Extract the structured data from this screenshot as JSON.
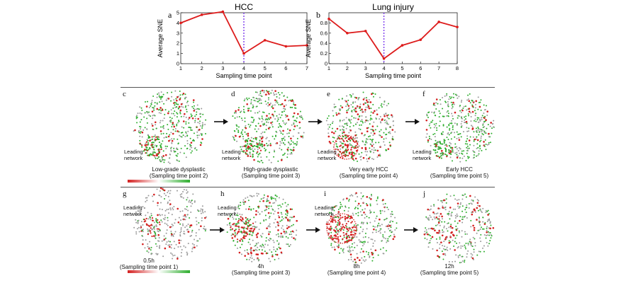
{
  "chart_data": [
    {
      "type": "line",
      "panel": "a",
      "title": "HCC",
      "xlabel": "Sampling time point",
      "ylabel": "Average SNE",
      "x": [
        1,
        2,
        3,
        4,
        5,
        6,
        7
      ],
      "values": [
        4.0,
        4.8,
        5.1,
        1.0,
        2.3,
        1.7,
        1.8
      ],
      "xlim": [
        1,
        7
      ],
      "ylim": [
        0,
        5
      ],
      "yticks": [
        "0",
        "1",
        "2",
        "3",
        "4",
        "5"
      ],
      "xticks": [
        "1",
        "2",
        "3",
        "4",
        "5",
        "6",
        "7"
      ],
      "marker_x": 4,
      "line_color": "#dd1b1b",
      "marker_color": "#7c3aed"
    },
    {
      "type": "line",
      "panel": "b",
      "title": "Lung injury",
      "xlabel": "Sampling time point",
      "ylabel": "Average SNE",
      "x": [
        1,
        2,
        3,
        4,
        5,
        6,
        7,
        8
      ],
      "values": [
        0.88,
        0.6,
        0.64,
        0.1,
        0.36,
        0.47,
        0.82,
        0.72
      ],
      "xlim": [
        1,
        8
      ],
      "ylim": [
        0,
        1
      ],
      "yticks": [
        "0",
        "0.2",
        "0.4",
        "0.6",
        "0.8"
      ],
      "xticks": [
        "1",
        "2",
        "3",
        "4",
        "5",
        "6",
        "7",
        "8"
      ],
      "marker_x": 4,
      "line_color": "#dd1b1b",
      "marker_color": "#7c3aed"
    }
  ],
  "row1": {
    "panels": [
      {
        "letter": "c",
        "leading": "Leading\nnetwork",
        "caption_line1": "Low-grade dysplastic",
        "caption_line2": "(Sampling time point 2)"
      },
      {
        "letter": "d",
        "leading": "Leading\nnetwork",
        "caption_line1": "High-grade dysplastic",
        "caption_line2": "(Sampling time point 3)"
      },
      {
        "letter": "e",
        "leading": "Leading\nnetwork",
        "caption_line1": "Very early HCC",
        "caption_line2": "(Sampling time point 4)"
      },
      {
        "letter": "f",
        "leading": "Leading\nnetwork",
        "caption_line1": "Early HCC",
        "caption_line2": "(Sampling time point 5)"
      }
    ]
  },
  "row2": {
    "panels": [
      {
        "letter": "g",
        "leading": "Leading\nnetwork",
        "caption_line1": "0.5h",
        "caption_line2": "(Sampling time point 1)"
      },
      {
        "letter": "h",
        "leading": "Leading\nnetwork",
        "caption_line1": "4h",
        "caption_line2": "(Sampling time point 3)"
      },
      {
        "letter": "i",
        "leading": "Leading\nnetwork",
        "caption_line1": "8h",
        "caption_line2": "(Sampling time point 4)"
      },
      {
        "letter": "j",
        "leading": "",
        "caption_line1": "12h",
        "caption_line2": "(Sampling time point 5)"
      }
    ]
  },
  "colors": {
    "red": "#d42020",
    "green": "#2fae2f",
    "gray": "#b8b8b8",
    "arrow": "#111111"
  }
}
